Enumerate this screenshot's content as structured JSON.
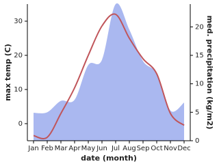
{
  "chart_data": {
    "type": "line-area",
    "categories": [
      "Jan",
      "Feb",
      "Mar",
      "Apr",
      "May",
      "Jun",
      "Jul",
      "Aug",
      "Sep",
      "Oct",
      "Nov",
      "Dec"
    ],
    "x_label": "date (month)",
    "y_label": "max temp (C)",
    "y2_label": "med. precipitation (kg/m2)",
    "ylim": [
      -5,
      35
    ],
    "yticks": [
      0,
      10,
      20,
      30
    ],
    "y2lim": [
      0,
      24
    ],
    "y2ticks": [
      0,
      5,
      10,
      15,
      20
    ],
    "series": [
      {
        "name": "med. precipitation",
        "axis": "y2",
        "kind": "area",
        "color": "#aab8f0",
        "values": [
          4.9,
          5,
          7,
          7.2,
          13.3,
          14.2,
          24,
          19.5,
          14,
          11.8,
          5.3,
          6.7
        ]
      },
      {
        "name": "max temp",
        "axis": "y",
        "kind": "line",
        "color": "#c0555a",
        "values": [
          -3.5,
          -4,
          3,
          10.5,
          20,
          28.6,
          32,
          25,
          19,
          14.6,
          3,
          -0.5
        ]
      }
    ]
  }
}
